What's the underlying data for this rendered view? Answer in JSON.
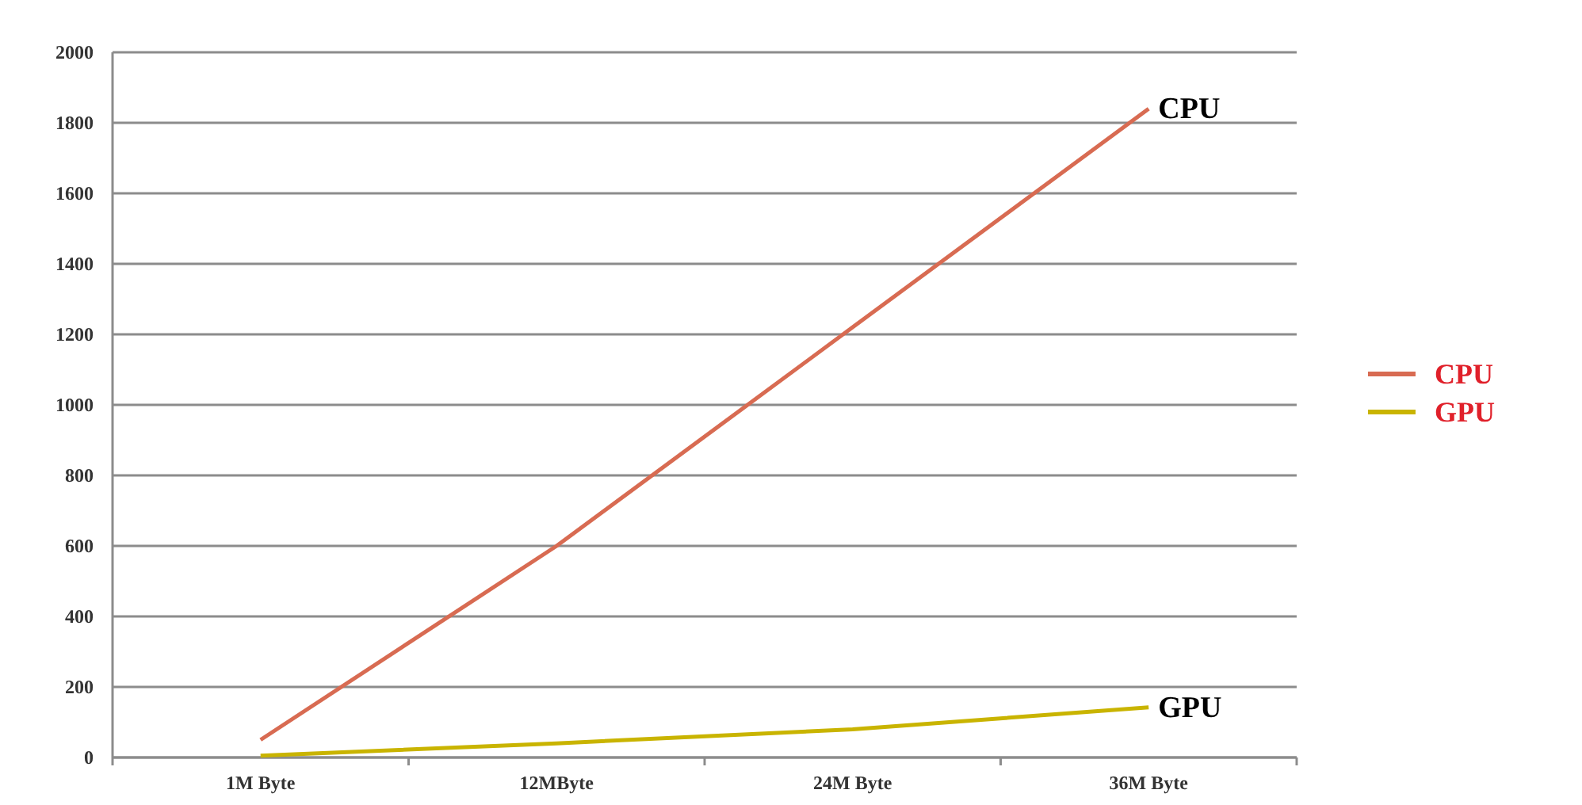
{
  "chart_data": {
    "type": "line",
    "categories": [
      "1M Byte",
      "12MByte",
      "24M Byte",
      "36M Byte"
    ],
    "series": [
      {
        "name": "CPU",
        "color": "#d86b52",
        "values": [
          50,
          600,
          1220,
          1840
        ]
      },
      {
        "name": "GPU",
        "color": "#c9b400",
        "values": [
          5,
          40,
          80,
          142
        ]
      }
    ],
    "ylim": [
      0,
      2000
    ],
    "yticks": [
      0,
      200,
      400,
      600,
      800,
      1000,
      1200,
      1400,
      1600,
      1800,
      2000
    ],
    "grid": "y",
    "legend": "right",
    "marker": "none",
    "line_style": "solid"
  }
}
